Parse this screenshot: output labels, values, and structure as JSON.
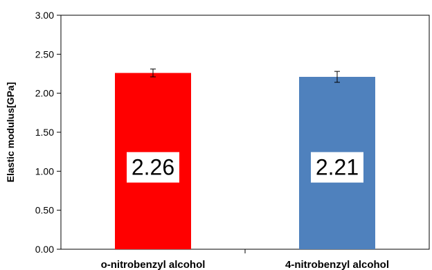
{
  "chart_data": {
    "type": "bar",
    "categories": [
      "o-nitrobenzyl alcohol",
      "4-nitrobenzyl alcohol"
    ],
    "values": [
      2.26,
      2.21
    ],
    "error": [
      0.05,
      0.07
    ],
    "colors": [
      "#ff0000",
      "#4f81bd"
    ],
    "value_labels": [
      "2.26",
      "2.21"
    ],
    "ylabel": "Elastic modulus[GPa]",
    "ylim": [
      0,
      3
    ],
    "yticks": [
      "0.00",
      "0.50",
      "1.00",
      "1.50",
      "2.00",
      "2.50",
      "3.00"
    ],
    "grid": false,
    "legend": "none"
  }
}
